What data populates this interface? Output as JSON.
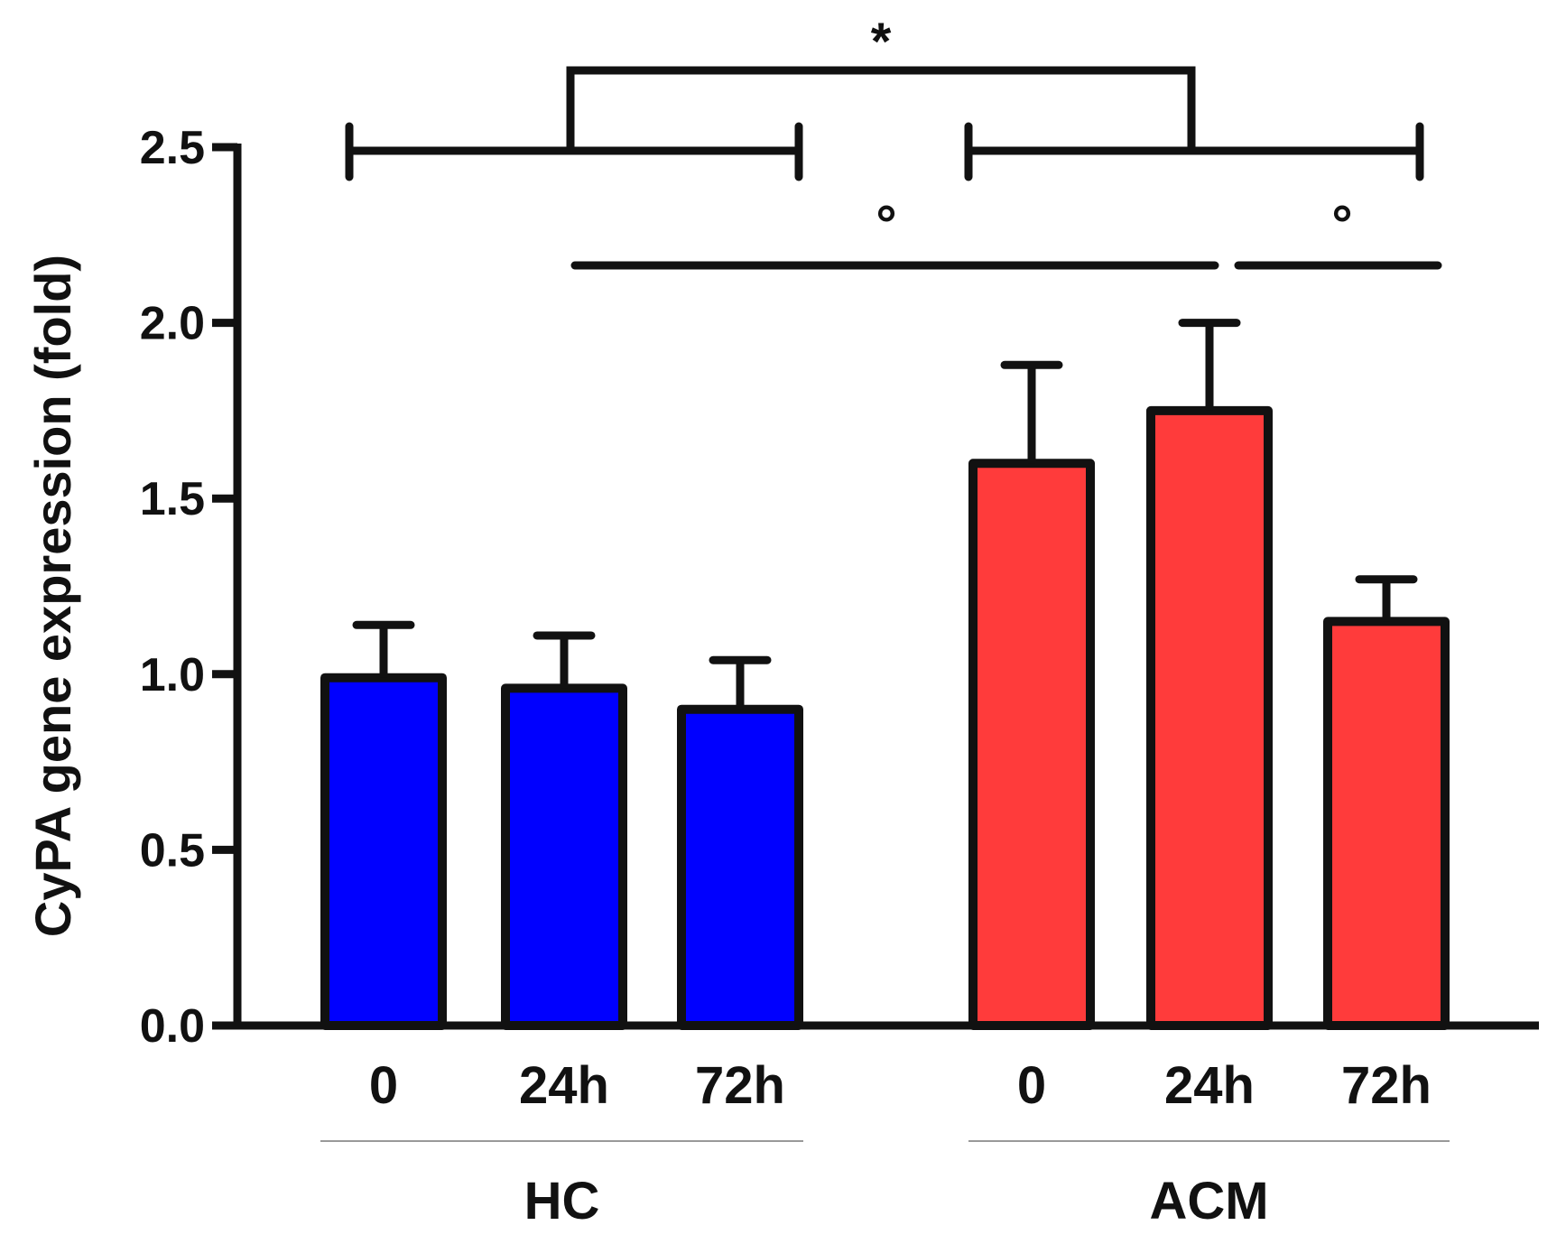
{
  "chart_data": {
    "type": "bar",
    "title": "",
    "ylabel": "CyPA gene expression (fold)",
    "xlabel": "",
    "ylim": [
      0,
      2.5
    ],
    "yticks": [
      "0.0",
      "0.5",
      "1.0",
      "1.5",
      "2.0",
      "2.5"
    ],
    "grid": false,
    "groups": [
      {
        "name": "HC",
        "color": "#0000ff",
        "categories": [
          "0",
          "24h",
          "72h"
        ],
        "values": [
          0.99,
          0.96,
          0.9
        ],
        "errors": [
          0.15,
          0.15,
          0.14
        ]
      },
      {
        "name": "ACM",
        "color": "#ff3b3b",
        "categories": [
          "0",
          "24h",
          "72h"
        ],
        "values": [
          1.6,
          1.75,
          1.15
        ],
        "errors": [
          0.28,
          0.25,
          0.12
        ]
      }
    ],
    "annotations": [
      {
        "symbol": "*",
        "between": [
          "HC",
          "ACM"
        ]
      },
      {
        "symbol": "°",
        "between": [
          "HC 24h",
          "ACM 24h"
        ]
      },
      {
        "symbol": "°",
        "between": [
          "ACM 24h",
          "ACM 72h"
        ]
      }
    ]
  }
}
